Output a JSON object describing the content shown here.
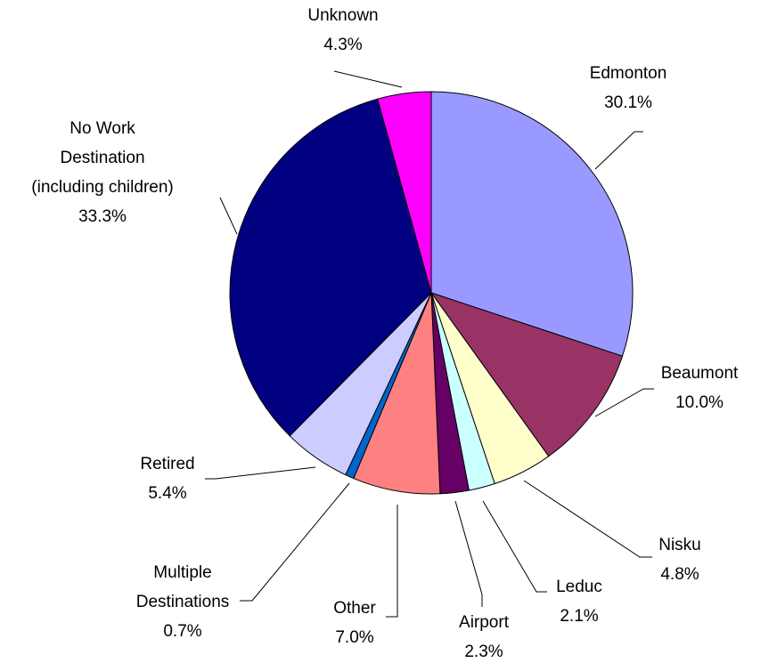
{
  "chart_data": {
    "type": "pie",
    "categories": [
      "Edmonton",
      "Beaumont",
      "Nisku",
      "Leduc",
      "Airport",
      "Other",
      "Multiple Destinations",
      "Retired",
      "No Work Destination (including children)",
      "Unknown"
    ],
    "values": [
      30.1,
      10.0,
      4.8,
      2.1,
      2.3,
      7.0,
      0.7,
      5.4,
      33.3,
      4.3
    ],
    "value_labels": [
      "30.1%",
      "10.0%",
      "4.8%",
      "2.1%",
      "2.3%",
      "7.0%",
      "0.7%",
      "5.4%",
      "33.3%",
      "4.3%"
    ],
    "colors": [
      "#9999ff",
      "#993366",
      "#ffffcc",
      "#ccffff",
      "#660066",
      "#ff8080",
      "#0066cc",
      "#ccccff",
      "#000080",
      "#ff00ff"
    ]
  }
}
